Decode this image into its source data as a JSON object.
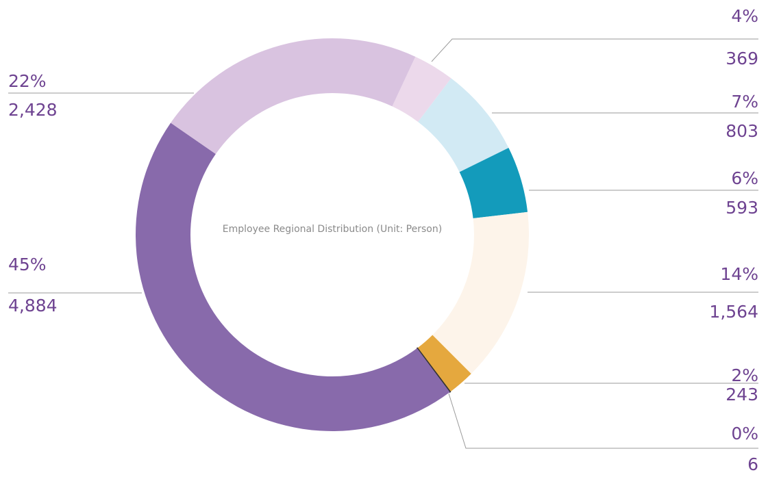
{
  "chart_data": {
    "type": "donut",
    "title": "Employee Regional Distribution (Unit: Person)",
    "values": [
      369,
      803,
      593,
      1564,
      243,
      6,
      4884,
      2428
    ],
    "value_labels": [
      "369",
      "803",
      "593",
      "1,564",
      "243",
      "6",
      "4,884",
      "2,428"
    ],
    "percent_labels": [
      "4%",
      "7%",
      "6%",
      "14%",
      "2%",
      "0%",
      "45%",
      "22%"
    ],
    "colors": [
      "#ecd9eb",
      "#d2eaf4",
      "#139bbb",
      "#fdf4ea",
      "#e5a83e",
      "#333333",
      "#886aab",
      "#d9c3e0"
    ]
  }
}
